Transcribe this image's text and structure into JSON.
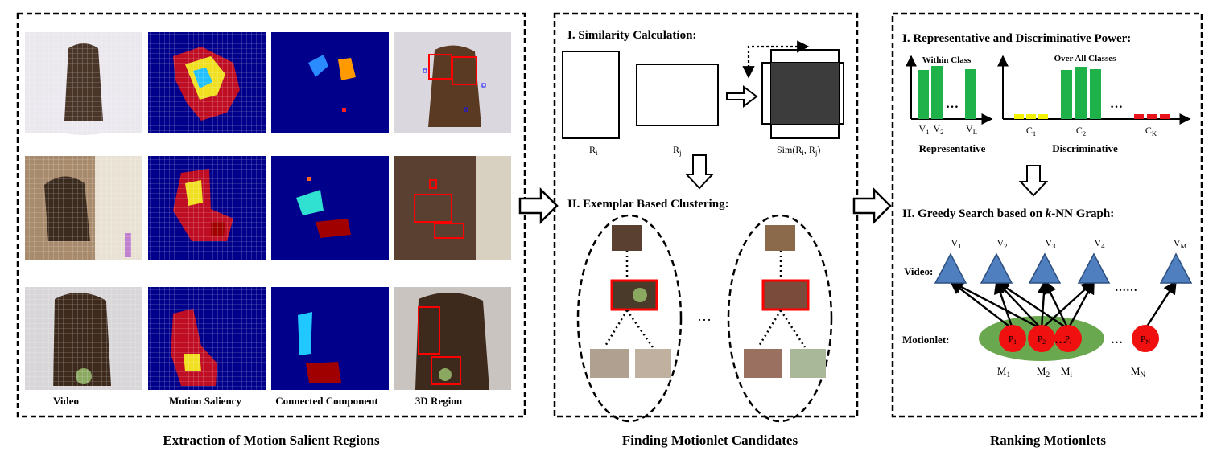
{
  "panels": {
    "extraction": {
      "caption": "Extraction of Motion Salient Regions",
      "column_labels": [
        "Video",
        "Motion Saliency",
        "Connected Component",
        "3D Region"
      ]
    },
    "finding": {
      "caption": "Finding Motionlet Candidates",
      "similarity_title": "I. Similarity Calculation:",
      "ri_label": "R",
      "ri_sub": "i",
      "rj_label": "R",
      "rj_sub": "j",
      "sim_label": "Sim(R",
      "sim_sub1": "i",
      "sim_mid": ", R",
      "sim_sub2": "j",
      "sim_end": ")",
      "clustering_title": "II. Exemplar Based Clustering:",
      "ellipsis": "…"
    },
    "ranking": {
      "caption": "Ranking Motionlets",
      "power_title": "I. Representative and Discriminative Power:",
      "within_class": "Within Class",
      "over_all_classes": "Over All Classes",
      "representative": "Representative",
      "discriminative": "Discriminative",
      "ellipsis": "…",
      "v_ticks": [
        {
          "base": "V",
          "sub": "1"
        },
        {
          "base": "V",
          "sub": "2"
        },
        {
          "base": "V",
          "sub": "L"
        }
      ],
      "c_ticks": [
        {
          "base": "C",
          "sub": "1"
        },
        {
          "base": "C",
          "sub": "2"
        },
        {
          "base": "C",
          "sub": "K"
        }
      ],
      "greedy_title_1": "II. Greedy  Search based on ",
      "greedy_title_k": "k",
      "greedy_title_2": "-NN Graph:",
      "video_label": "Video:",
      "motionlet_label": "Motionlet:",
      "dots": "……",
      "video_nodes": [
        {
          "base": "V",
          "sub": "1"
        },
        {
          "base": "V",
          "sub": "2"
        },
        {
          "base": "V",
          "sub": "3"
        },
        {
          "base": "V",
          "sub": "4"
        },
        {
          "base": "V",
          "sub": "M"
        }
      ],
      "motionlet_nodes": [
        {
          "base": "P",
          "sub": "1"
        },
        {
          "base": "P",
          "sub": "2"
        },
        {
          "base": "P",
          "sub": "i"
        },
        {
          "base": "P",
          "sub": "N"
        }
      ],
      "m_labels": [
        {
          "base": "M",
          "sub": "1"
        },
        {
          "base": "M",
          "sub": "2"
        },
        {
          "base": "M",
          "sub": "i"
        },
        {
          "base": "M",
          "sub": "N"
        }
      ]
    }
  },
  "colors": {
    "green_bar": "#1fb14a",
    "yellow_bar": "#f3f300",
    "red_bar": "#e8141b",
    "triangle": "#4f7fbf",
    "node": "#f01010",
    "ellipse_green": "#6aa84f",
    "heat_bg": "#00008b",
    "sim_fill": "#3c3c3c",
    "highlight": "#ff0000"
  }
}
